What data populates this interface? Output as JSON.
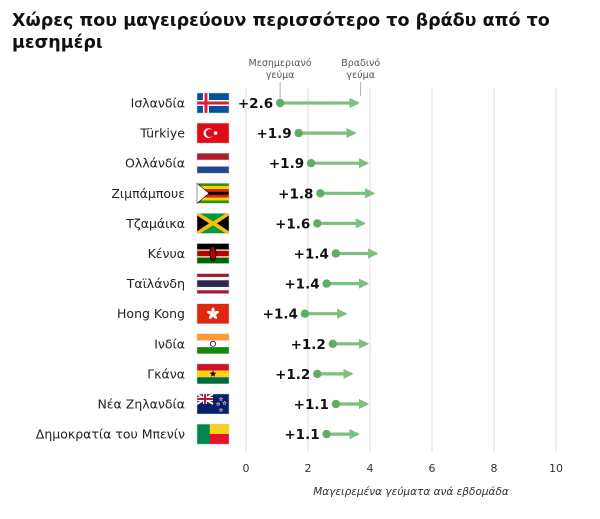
{
  "chart_data": {
    "type": "dumbbell",
    "title": "Χώρες που μαγειρεύουν περισσότερο το βράδυ από το μεσημέρι",
    "xlabel": "Μαγειρεμένα γεύματα ανά εβδομάδα",
    "xlim": [
      0,
      10
    ],
    "xticks": [
      "0",
      "2",
      "4",
      "6",
      "8",
      "10"
    ],
    "grid": true,
    "legend": {
      "lunch": [
        "Μεσημεριανό",
        "γεύμα"
      ],
      "dinner": [
        "Βραδινό",
        "γεύμα"
      ]
    },
    "colors": {
      "line": "#7cc07f",
      "dot": "#5fae63",
      "grid": "#dddddd"
    },
    "rows": [
      {
        "country": "Ισλανδία",
        "flag": "iceland-flag",
        "diff": "+2.6",
        "lunch": 1.1,
        "dinner": 3.7
      },
      {
        "country": "Türkiye",
        "flag": "turkey-flag",
        "diff": "+1.9",
        "lunch": 1.7,
        "dinner": 3.6
      },
      {
        "country": "Ολλάνδία",
        "flag": "netherlands-flag",
        "diff": "+1.9",
        "lunch": 2.1,
        "dinner": 4.0
      },
      {
        "country": "Ζιμπάμπουε",
        "flag": "zimbabwe-flag",
        "diff": "+1.8",
        "lunch": 2.4,
        "dinner": 4.2
      },
      {
        "country": "Τζαμάικα",
        "flag": "jamaica-flag",
        "diff": "+1.6",
        "lunch": 2.3,
        "dinner": 3.9
      },
      {
        "country": "Κένυα",
        "flag": "kenya-flag",
        "diff": "+1.4",
        "lunch": 2.9,
        "dinner": 4.3
      },
      {
        "country": "Ταϊλάνδη",
        "flag": "thailand-flag",
        "diff": "+1.4",
        "lunch": 2.6,
        "dinner": 4.0
      },
      {
        "country": "Hong Kong",
        "flag": "hong-kong-flag",
        "diff": "+1.4",
        "lunch": 1.9,
        "dinner": 3.3
      },
      {
        "country": "Ινδία",
        "flag": "india-flag",
        "diff": "+1.2",
        "lunch": 2.8,
        "dinner": 4.0
      },
      {
        "country": "Γκάνα",
        "flag": "ghana-flag",
        "diff": "+1.2",
        "lunch": 2.3,
        "dinner": 3.5
      },
      {
        "country": "Νέα Ζηλανδία",
        "flag": "new-zealand-flag",
        "diff": "+1.1",
        "lunch": 2.9,
        "dinner": 4.0
      },
      {
        "country": "Δημοκρατία του Μπενίν",
        "flag": "benin-flag",
        "diff": "+1.1",
        "lunch": 2.6,
        "dinner": 3.7
      }
    ]
  }
}
